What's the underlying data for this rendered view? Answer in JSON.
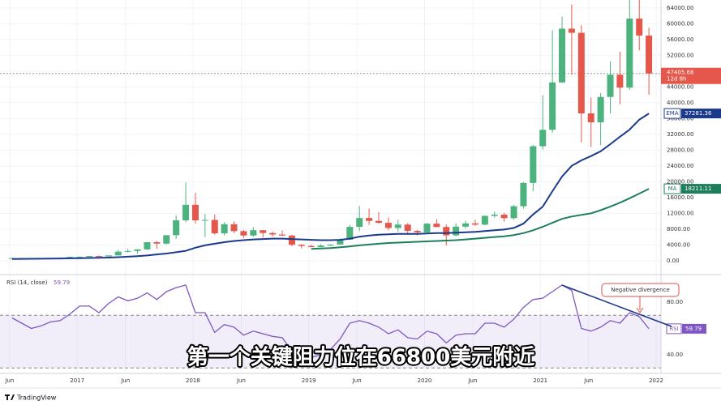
{
  "chart_data": [
    {
      "type": "candlestick",
      "x": [
        "2016-06",
        "2016-07",
        "2016-08",
        "2016-09",
        "2016-10",
        "2016-11",
        "2016-12",
        "2017-01",
        "2017-02",
        "2017-03",
        "2017-04",
        "2017-05",
        "2017-06",
        "2017-07",
        "2017-08",
        "2017-09",
        "2017-10",
        "2017-11",
        "2017-12",
        "2018-01",
        "2018-02",
        "2018-03",
        "2018-04",
        "2018-05",
        "2018-06",
        "2018-07",
        "2018-08",
        "2018-09",
        "2018-10",
        "2018-11",
        "2018-12",
        "2019-01",
        "2019-02",
        "2019-03",
        "2019-04",
        "2019-05",
        "2019-06",
        "2019-07",
        "2019-08",
        "2019-09",
        "2019-10",
        "2019-11",
        "2019-12",
        "2020-01",
        "2020-02",
        "2020-03",
        "2020-04",
        "2020-05",
        "2020-06",
        "2020-07",
        "2020-08",
        "2020-09",
        "2020-10",
        "2020-11",
        "2020-12",
        "2021-01",
        "2021-02",
        "2021-03",
        "2021-04",
        "2021-05",
        "2021-06",
        "2021-07",
        "2021-08",
        "2021-09",
        "2021-10",
        "2021-11",
        "2021-12"
      ],
      "open": [
        530,
        670,
        620,
        575,
        610,
        700,
        745,
        965,
        970,
        1190,
        1080,
        1350,
        2300,
        2480,
        2870,
        4700,
        4340,
        6470,
        10230,
        14160,
        10220,
        10330,
        6930,
        9240,
        7490,
        6390,
        7730,
        7020,
        6630,
        6370,
        4040,
        3740,
        3460,
        3850,
        4100,
        5320,
        8570,
        10820,
        10080,
        9600,
        8290,
        9150,
        7570,
        7190,
        9390,
        8540,
        6420,
        8630,
        9450,
        9140,
        11350,
        11660,
        10780,
        13800,
        19700,
        28990,
        33140,
        45140,
        58740,
        57700,
        37300,
        35040,
        41460,
        47100,
        43820,
        61300,
        57000
      ],
      "high": [
        780,
        700,
        620,
        615,
        740,
        755,
        980,
        1150,
        1210,
        1300,
        1350,
        2760,
        2980,
        2920,
        4750,
        4980,
        6470,
        11500,
        19800,
        17200,
        11800,
        11700,
        9750,
        9990,
        7780,
        8500,
        7760,
        7400,
        7680,
        6590,
        4240,
        4110,
        4210,
        4100,
        5640,
        9090,
        13880,
        13200,
        12330,
        10950,
        10400,
        9500,
        7740,
        9580,
        10520,
        9190,
        9470,
        10070,
        10390,
        11450,
        12470,
        12070,
        14100,
        19880,
        29300,
        41950,
        58350,
        61780,
        64850,
        59590,
        41300,
        42450,
        50480,
        52920,
        67000,
        69000,
        59000
      ],
      "low": [
        500,
        470,
        470,
        570,
        600,
        690,
        740,
        750,
        920,
        890,
        1080,
        1350,
        2080,
        1830,
        2700,
        2980,
        4110,
        5500,
        9700,
        9400,
        6000,
        6600,
        6430,
        7030,
        5750,
        6070,
        5880,
        6100,
        6200,
        3650,
        3150,
        3400,
        3390,
        3730,
        4090,
        5290,
        7500,
        9100,
        9320,
        7700,
        7300,
        6530,
        6430,
        6870,
        8450,
        3850,
        6150,
        8120,
        8830,
        8950,
        10930,
        9880,
        10370,
        13200,
        17570,
        28130,
        32380,
        45000,
        47040,
        30000,
        28800,
        29280,
        37330,
        39600,
        43290,
        53250,
        42000
      ],
      "close": [
        670,
        620,
        575,
        610,
        700,
        745,
        965,
        970,
        1190,
        1080,
        1350,
        2300,
        2480,
        2870,
        4700,
        4340,
        6470,
        10230,
        14160,
        10220,
        10330,
        6930,
        9240,
        7490,
        6390,
        7730,
        7020,
        6630,
        6370,
        4040,
        3740,
        3460,
        3850,
        4100,
        5320,
        8570,
        10820,
        10080,
        9600,
        8290,
        9150,
        7570,
        7190,
        9390,
        8540,
        6420,
        8630,
        9450,
        9140,
        11350,
        11660,
        10780,
        13800,
        19700,
        28990,
        33140,
        45140,
        58740,
        57700,
        37300,
        35040,
        41460,
        47100,
        43820,
        61300,
        57000,
        47405.68
      ],
      "up_color": "#4db37e",
      "down_color": "#e5574b",
      "series": [
        {
          "name": "EMA",
          "color": "#1c3a8c",
          "values": [
            450,
            480,
            500,
            520,
            540,
            570,
            610,
            650,
            700,
            750,
            800,
            900,
            1030,
            1170,
            1330,
            1600,
            1830,
            2150,
            2500,
            3300,
            3900,
            4300,
            4700,
            5000,
            5200,
            5400,
            5500,
            5600,
            5600,
            5500,
            5400,
            5300,
            5200,
            5200,
            5300,
            5600,
            6100,
            6400,
            6600,
            6700,
            6800,
            6800,
            6800,
            6900,
            7000,
            7000,
            7100,
            7200,
            7300,
            7500,
            7700,
            7900,
            8300,
            9400,
            11700,
            13700,
            17600,
            21300,
            24000,
            25400,
            26500,
            27700,
            29500,
            31400,
            33200,
            35700,
            37281.36
          ]
        },
        {
          "name": "MA",
          "color": "#1e7f5c",
          "values": [
            null,
            null,
            null,
            null,
            null,
            null,
            null,
            null,
            null,
            null,
            null,
            null,
            null,
            null,
            null,
            null,
            null,
            null,
            null,
            null,
            null,
            null,
            null,
            null,
            null,
            null,
            null,
            null,
            null,
            null,
            null,
            3000,
            3100,
            3200,
            3400,
            3600,
            3900,
            4100,
            4300,
            4500,
            4600,
            4700,
            4800,
            4900,
            5000,
            5100,
            5200,
            5400,
            5600,
            5800,
            6000,
            6200,
            6500,
            7000,
            7700,
            8600,
            9600,
            10600,
            11200,
            11600,
            12000,
            12800,
            13700,
            14700,
            15800,
            17000,
            18211.11
          ]
        }
      ],
      "countdown": "12d 8h",
      "xlim": [
        "2016-05",
        "2022-01"
      ],
      "xticks": [
        {
          "value": "2016-06",
          "label": "Jun"
        },
        {
          "value": "2017-01",
          "label": "2017"
        },
        {
          "value": "2017-06",
          "label": "Jun"
        },
        {
          "value": "2018-01",
          "label": "2018"
        },
        {
          "value": "2018-06",
          "label": "Jun"
        },
        {
          "value": "2019-01",
          "label": "2019"
        },
        {
          "value": "2019-06",
          "label": "Jun"
        },
        {
          "value": "2020-01",
          "label": "2020"
        },
        {
          "value": "2020-06",
          "label": "Jun"
        },
        {
          "value": "2021-01",
          "label": "2021"
        },
        {
          "value": "2021-06",
          "label": "Jun"
        },
        {
          "value": "2022-01",
          "label": "2022"
        }
      ],
      "ylim": [
        -3300,
        66000
      ],
      "yticks": [
        {
          "value": 0,
          "label": "0.00"
        },
        {
          "value": 4000,
          "label": "4000.00"
        },
        {
          "value": 8000,
          "label": "8000.00"
        },
        {
          "value": 12000,
          "label": "12000.00"
        },
        {
          "value": 16000,
          "label": "16000.00"
        },
        {
          "value": 20000,
          "label": "20000.00"
        },
        {
          "value": 24000,
          "label": "24000.00"
        },
        {
          "value": 28000,
          "label": "28000.00"
        },
        {
          "value": 32000,
          "label": "32000.00"
        },
        {
          "value": 36000,
          "label": "36000.00"
        },
        {
          "value": 40000,
          "label": "40000.00"
        },
        {
          "value": 44000,
          "label": "44000.00"
        },
        {
          "value": 48000,
          "label": "48000.00"
        },
        {
          "value": 52000,
          "label": "52000.00"
        },
        {
          "value": 56000,
          "label": "56000.00"
        },
        {
          "value": 60000,
          "label": "60000.00"
        },
        {
          "value": 64000,
          "label": "64000.00"
        }
      ],
      "grid": true
    },
    {
      "type": "line",
      "title": "RSI (14, close)",
      "series": [
        {
          "name": "RSI",
          "color": "#7e57c2",
          "values": [
            68,
            64,
            60,
            62,
            65,
            66,
            71,
            77,
            77,
            72,
            79,
            84,
            81,
            83,
            87,
            82,
            88,
            91,
            93,
            72,
            72,
            57,
            63,
            61,
            55,
            58,
            56,
            54,
            53,
            43,
            40,
            38,
            40,
            44,
            52,
            64,
            66,
            64,
            61,
            56,
            59,
            53,
            52,
            58,
            56,
            49,
            55,
            56,
            56,
            64,
            64,
            61,
            67,
            76,
            82,
            83,
            88,
            93,
            89,
            60,
            58,
            61,
            66,
            64,
            72,
            69,
            59.79
          ]
        }
      ],
      "band": [
        30,
        70
      ],
      "ylim": [
        26.5,
        100.3
      ],
      "yticks": [
        {
          "value": 40,
          "label": "40.00"
        },
        {
          "value": 80,
          "label": "80.00"
        }
      ],
      "annotation": "Negative divergence"
    }
  ],
  "caption": "第一个关键阻力位在66800美元附近",
  "brand": "TradingView"
}
